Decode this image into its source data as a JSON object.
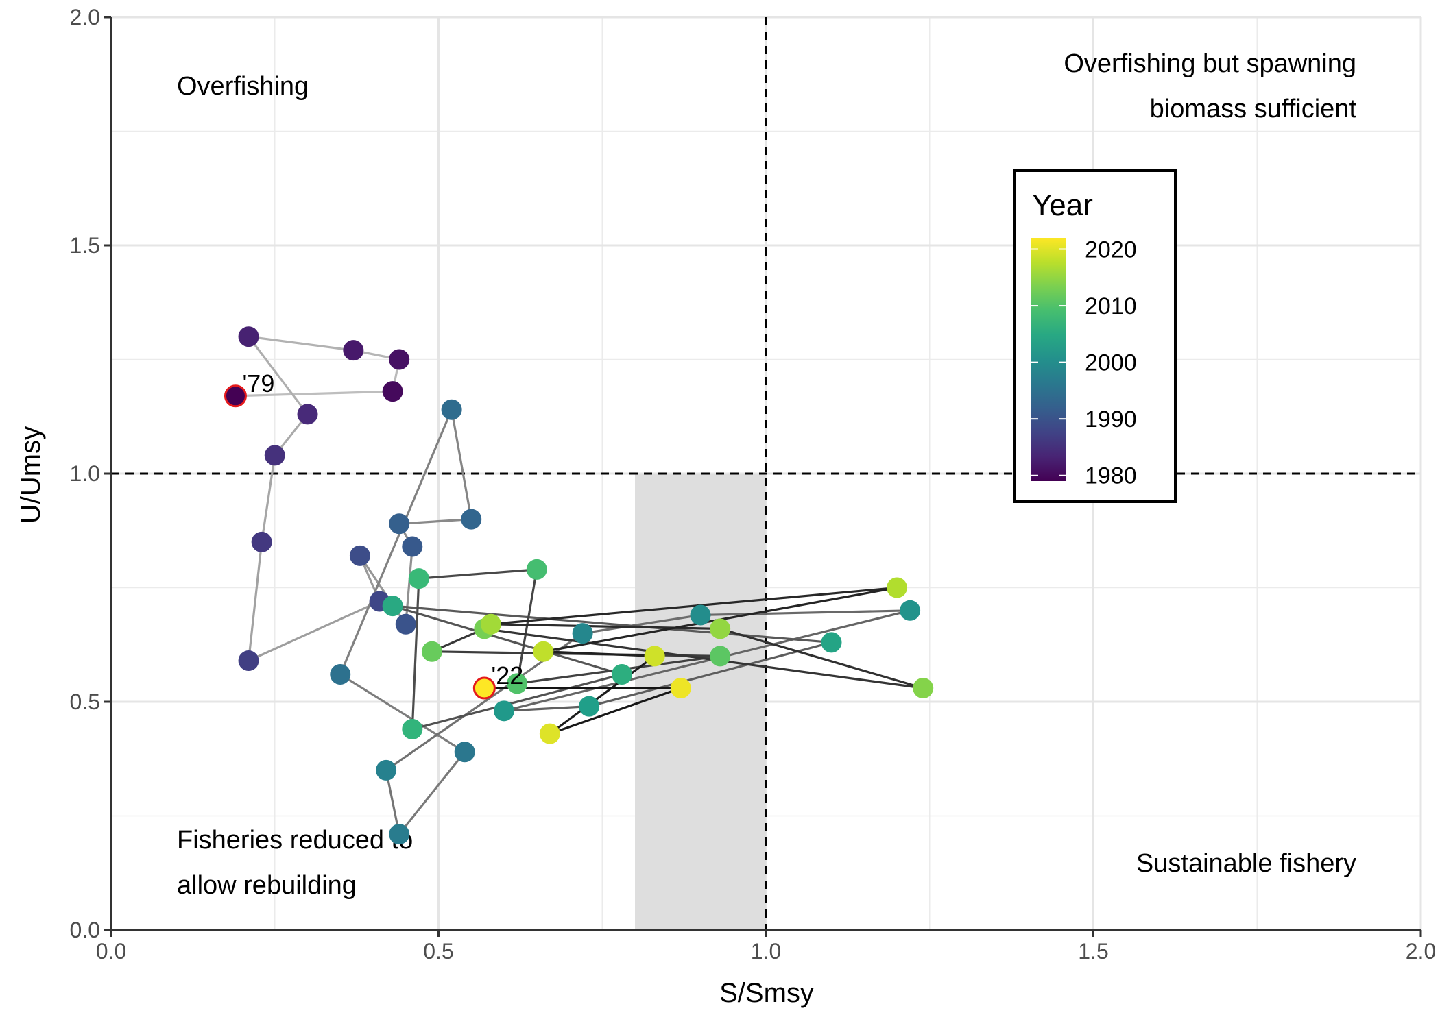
{
  "chart_data": {
    "type": "scatter",
    "xlabel": "S/Smsy",
    "ylabel": "U/Umsy",
    "xlim": [
      0,
      2
    ],
    "ylim": [
      0,
      2
    ],
    "x_ticks": [
      "0.0",
      "0.5",
      "1.0",
      "1.5",
      "2.0"
    ],
    "y_ticks": [
      "0.0",
      "0.5",
      "1.0",
      "1.5",
      "2.0"
    ],
    "grid": true,
    "reference_lines": {
      "x": 1.0,
      "y": 1.0,
      "style": "dashed"
    },
    "shaded_region": {
      "x": [
        0.8,
        1.0
      ],
      "y": [
        0,
        1.0
      ],
      "color": "#dedede"
    },
    "quadrant_labels": {
      "top_left": [
        "Overfishing"
      ],
      "top_right": [
        "Overfishing but spawning",
        "biomass sufficient"
      ],
      "bottom_left": [
        "Fisheries reduced to",
        "allow rebuilding"
      ],
      "bottom_right": [
        "Sustainable fishery"
      ]
    },
    "point_labels": [
      {
        "text": "'79",
        "year": 1979
      },
      {
        "text": "'22",
        "year": 2022
      }
    ],
    "legend": {
      "title": "Year",
      "placement": "upper-right",
      "ticks": [
        "2020",
        "2010",
        "2000",
        "1990",
        "1980"
      ],
      "range": [
        1979,
        2022
      ],
      "palette": "viridis"
    },
    "highlight_stroke": "#e41a1c",
    "series": [
      {
        "years": [
          1979,
          1980,
          1981,
          1982,
          1983,
          1984,
          1985,
          1986,
          1987,
          1988,
          1989,
          1990,
          1991,
          1992,
          1993,
          1994,
          1995,
          1996,
          1997,
          1998,
          1999,
          2000,
          2001,
          2002,
          2003,
          2004,
          2005,
          2006,
          2007,
          2008,
          2009,
          2010,
          2011,
          2012,
          2013,
          2014,
          2015,
          2016,
          2017,
          2018,
          2019,
          2020,
          2021,
          2022
        ],
        "x": [
          0.19,
          0.43,
          0.44,
          0.37,
          0.21,
          0.3,
          0.25,
          0.23,
          0.21,
          0.41,
          0.38,
          0.45,
          0.46,
          0.44,
          0.55,
          0.52,
          0.35,
          0.54,
          0.44,
          0.42,
          0.72,
          0.9,
          1.22,
          0.6,
          0.73,
          1.1,
          0.43,
          0.78,
          0.46,
          0.47,
          0.65,
          0.62,
          0.93,
          0.49,
          0.57,
          1.24,
          0.93,
          0.58,
          1.2,
          0.66,
          0.83,
          0.67,
          0.87,
          0.57
        ],
        "y": [
          1.17,
          1.18,
          1.25,
          1.27,
          1.3,
          1.13,
          1.04,
          0.85,
          0.59,
          0.72,
          0.82,
          0.67,
          0.84,
          0.89,
          0.9,
          1.14,
          0.56,
          0.39,
          0.21,
          0.35,
          0.65,
          0.69,
          0.7,
          0.48,
          0.49,
          0.63,
          0.71,
          0.56,
          0.44,
          0.77,
          0.79,
          0.54,
          0.6,
          0.61,
          0.66,
          0.53,
          0.66,
          0.67,
          0.75,
          0.61,
          0.6,
          0.43,
          0.53,
          0.53
        ]
      }
    ]
  }
}
